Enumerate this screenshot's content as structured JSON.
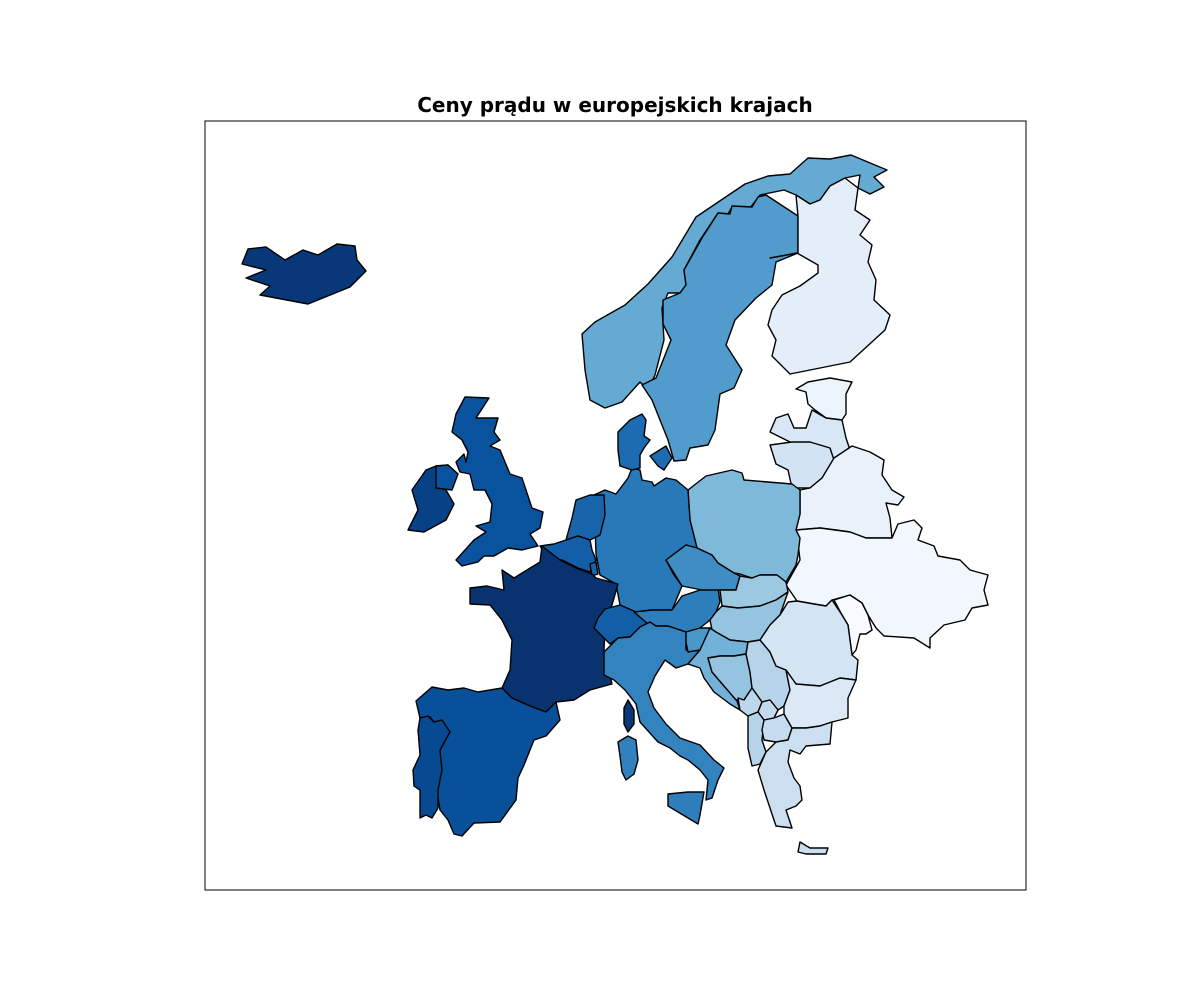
{
  "title": "Ceny prądu w europejskich krajach",
  "chart_data": {
    "type": "choropleth",
    "title": "Ceny prądu w europejskich krajach",
    "colormap": "Blues",
    "legend": "none",
    "regions": [
      {
        "id": "iceland",
        "level": 0.97
      },
      {
        "id": "norway",
        "level": 0.52
      },
      {
        "id": "sweden",
        "level": 0.58
      },
      {
        "id": "finland",
        "level": 0.1
      },
      {
        "id": "estonia",
        "level": 0.05
      },
      {
        "id": "latvia",
        "level": 0.16
      },
      {
        "id": "lithuania",
        "level": 0.19
      },
      {
        "id": "belarus",
        "level": 0.07
      },
      {
        "id": "ukraine",
        "level": 0.03
      },
      {
        "id": "moldova",
        "level": 0.0
      },
      {
        "id": "poland",
        "level": 0.45
      },
      {
        "id": "germany",
        "level": 0.72
      },
      {
        "id": "denmark",
        "level": 0.77
      },
      {
        "id": "denmark-island",
        "level": 0.77
      },
      {
        "id": "netherlands",
        "level": 0.8
      },
      {
        "id": "belgium",
        "level": 0.82
      },
      {
        "id": "luxembourg",
        "level": 0.8
      },
      {
        "id": "france",
        "level": 0.99
      },
      {
        "id": "spain",
        "level": 0.88
      },
      {
        "id": "portugal",
        "level": 0.9
      },
      {
        "id": "united-kingdom",
        "level": 0.87
      },
      {
        "id": "ireland",
        "level": 0.93
      },
      {
        "id": "northern-ireland",
        "level": 0.87
      },
      {
        "id": "switzerland",
        "level": 0.82
      },
      {
        "id": "austria",
        "level": 0.7
      },
      {
        "id": "czechia",
        "level": 0.64
      },
      {
        "id": "slovakia",
        "level": 0.38
      },
      {
        "id": "hungary",
        "level": 0.4
      },
      {
        "id": "italy",
        "level": 0.68
      },
      {
        "id": "sicily",
        "level": 0.7
      },
      {
        "id": "sardinia",
        "level": 0.69
      },
      {
        "id": "corsica",
        "level": 0.97
      },
      {
        "id": "slovenia",
        "level": 0.6
      },
      {
        "id": "croatia",
        "level": 0.48
      },
      {
        "id": "bosnia",
        "level": 0.4
      },
      {
        "id": "serbia",
        "level": 0.3
      },
      {
        "id": "montenegro",
        "level": 0.28
      },
      {
        "id": "kosovo",
        "level": 0.26
      },
      {
        "id": "albania",
        "level": 0.3
      },
      {
        "id": "north-macedonia",
        "level": 0.25
      },
      {
        "id": "romania",
        "level": 0.18
      },
      {
        "id": "bulgaria",
        "level": 0.14
      },
      {
        "id": "greece",
        "level": 0.22
      },
      {
        "id": "crete",
        "level": 0.22
      }
    ]
  }
}
